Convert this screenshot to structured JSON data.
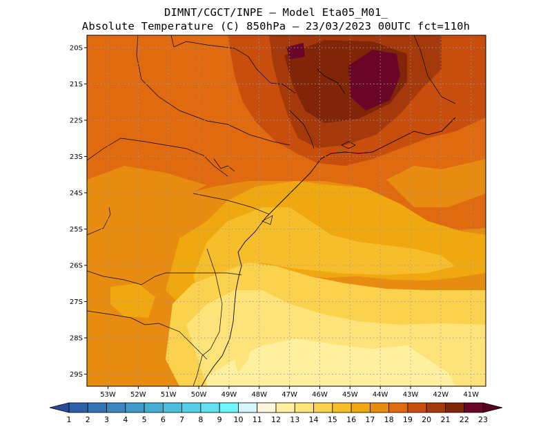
{
  "title": {
    "line1": "DIMNT/CGCT/INPE –  Model Eta05_M01_",
    "line2": "Absolute Temperature (C) 850hPa –  23/03/2023 00UTC fct=110h"
  },
  "map_data": {
    "variable": "Absolute Temperature (C) 850hPa",
    "lon_labels": [
      "53W",
      "52W",
      "51W",
      "50W",
      "49W",
      "48W",
      "47W",
      "46W",
      "45W",
      "44W",
      "43W",
      "42W",
      "41W"
    ],
    "lat_labels": [
      "20S",
      "21S",
      "22S",
      "23S",
      "24S",
      "25S",
      "26S",
      "27S",
      "28S",
      "29S"
    ],
    "gridlines": "dotted"
  },
  "colorbar": {
    "labels": [
      "1",
      "2",
      "3",
      "4",
      "5",
      "6",
      "7",
      "8",
      "9",
      "10",
      "11",
      "12",
      "13",
      "14",
      "15",
      "16",
      "17",
      "18",
      "19",
      "20",
      "21",
      "22",
      "23"
    ],
    "colors": [
      "#2a4b9b",
      "#2c5fa8",
      "#3373b4",
      "#3a86bf",
      "#3f99c9",
      "#45acd3",
      "#4bbddd",
      "#55cee6",
      "#64e0f0",
      "#6ff6fb",
      "#d5f5fa",
      "#fff5dd",
      "#fff0a0",
      "#fee37a",
      "#fbd24e",
      "#f6be2a",
      "#f0a810",
      "#e88b11",
      "#df6a10",
      "#c84e0e",
      "#a43a0c",
      "#812509",
      "#690628",
      "#57001c"
    ]
  }
}
